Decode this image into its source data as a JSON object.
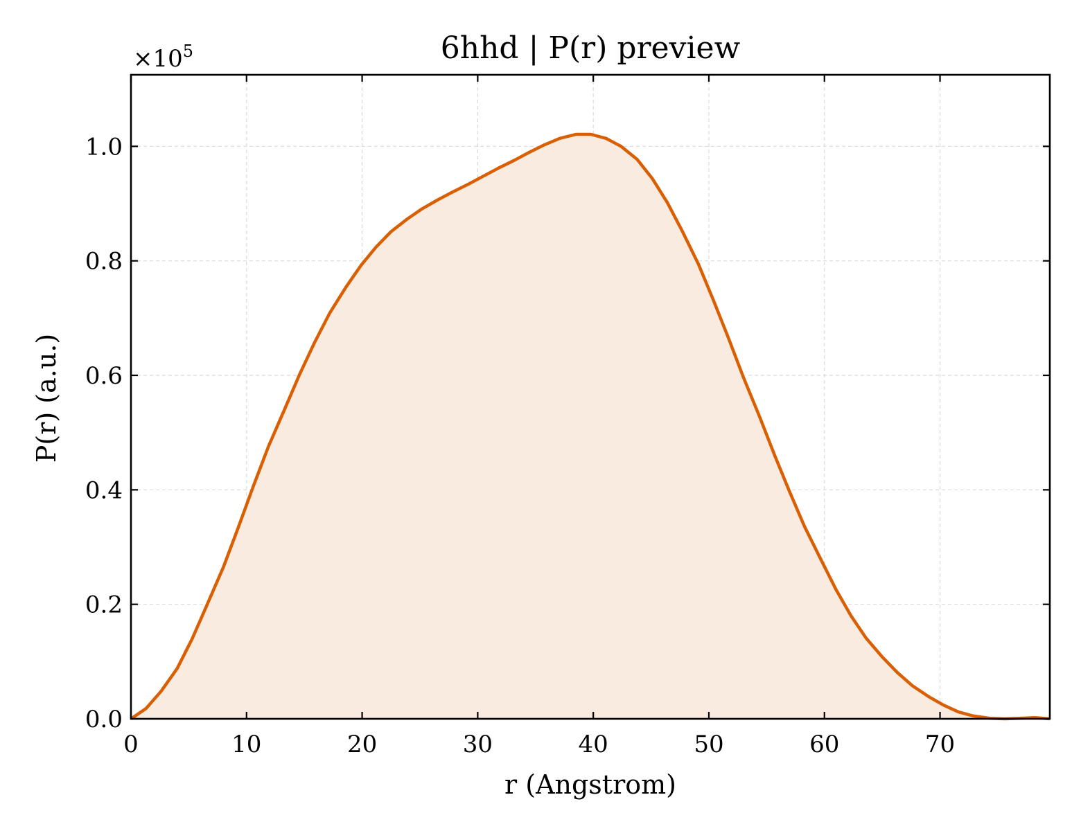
{
  "chart_data": {
    "type": "area",
    "title": "6hhd | P(r) preview",
    "xlabel": "r (Angstrom)",
    "ylabel": "P(r) (a.u.)",
    "y_multiplier": {
      "base": "×10",
      "exponent": "5"
    },
    "xlim": [
      0,
      79.5
    ],
    "ylim": [
      0,
      1.125
    ],
    "y_scale_factor": 100000,
    "grid": true,
    "x_ticks": [
      0,
      10,
      20,
      30,
      40,
      50,
      60,
      70
    ],
    "x_tick_labels": [
      "0",
      "10",
      "20",
      "30",
      "40",
      "50",
      "60",
      "70"
    ],
    "y_ticks": [
      0.0,
      0.2,
      0.4,
      0.6,
      0.8,
      1.0
    ],
    "y_tick_labels": [
      "0.0",
      "0.2",
      "0.4",
      "0.6",
      "0.8",
      "1.0"
    ],
    "line_color": "#d95f02",
    "fill_color": "#f9ebe0",
    "series": [
      {
        "x": [
          0,
          1.3,
          2.6,
          4.0,
          5.3,
          6.6,
          8.0,
          9.3,
          10.6,
          11.9,
          13.3,
          14.6,
          15.9,
          17.2,
          18.6,
          19.9,
          21.2,
          22.5,
          23.9,
          25.2,
          26.5,
          27.8,
          29.2,
          30.5,
          31.8,
          33.2,
          34.5,
          35.8,
          37.1,
          38.5,
          39.8,
          41.1,
          42.4,
          43.8,
          45.1,
          46.4,
          47.7,
          49.1,
          50.4,
          51.7,
          53.0,
          54.4,
          55.7,
          57.0,
          58.3,
          59.7,
          61.0,
          62.3,
          63.6,
          65.0,
          66.3,
          67.6,
          69.0,
          70.3,
          71.6,
          72.9,
          74.3,
          75.6,
          76.9,
          78.2,
          79.5
        ],
        "y": [
          0.0,
          0.018,
          0.048,
          0.088,
          0.14,
          0.2,
          0.265,
          0.335,
          0.407,
          0.476,
          0.541,
          0.602,
          0.658,
          0.709,
          0.754,
          0.792,
          0.824,
          0.851,
          0.873,
          0.891,
          0.906,
          0.92,
          0.934,
          0.948,
          0.962,
          0.976,
          0.99,
          1.003,
          1.014,
          1.021,
          1.021,
          1.014,
          1.0,
          0.977,
          0.944,
          0.902,
          0.852,
          0.794,
          0.731,
          0.665,
          0.596,
          0.527,
          0.46,
          0.396,
          0.335,
          0.278,
          0.226,
          0.18,
          0.141,
          0.108,
          0.081,
          0.058,
          0.039,
          0.024,
          0.012,
          0.005,
          0.001,
          0.0,
          0.001,
          0.002,
          0.0
        ]
      }
    ]
  }
}
